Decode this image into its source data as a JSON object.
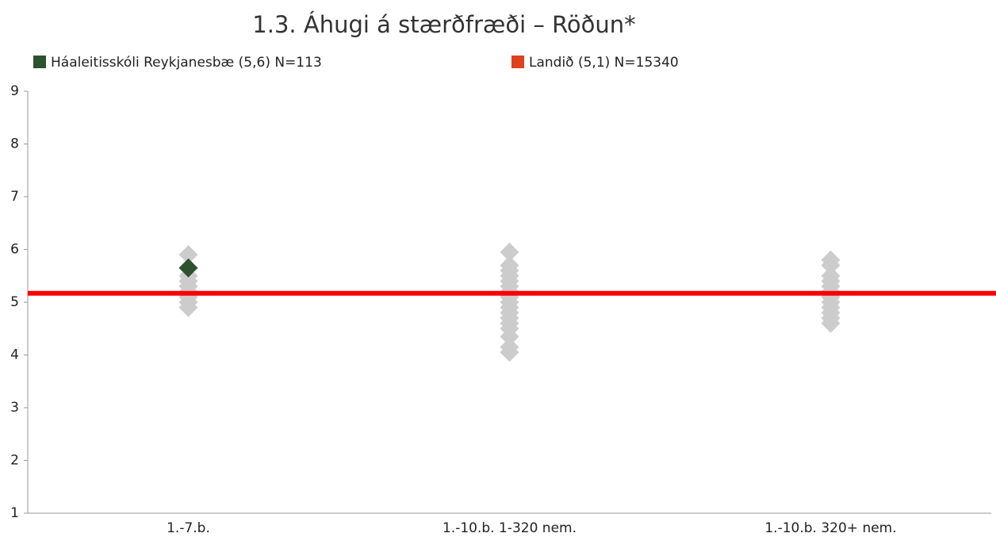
{
  "chart_data": {
    "type": "strip",
    "title": "1.3. Áhugi á stærðfræði – Röðun*",
    "categories": [
      "1.-7.b.",
      "1.-10.b. 1-320 nem.",
      "1.-10.b. 320+ nem."
    ],
    "ylim": [
      1,
      9
    ],
    "yticks": [
      1,
      2,
      3,
      4,
      5,
      6,
      7,
      8,
      9
    ],
    "background": {
      "color": "#cccccc",
      "values": [
        [
          4.9,
          5.0,
          5.1,
          5.2,
          5.3,
          5.4,
          5.5,
          5.9
        ],
        [
          4.05,
          4.15,
          4.35,
          4.5,
          4.6,
          4.7,
          4.8,
          4.9,
          5.0,
          5.1,
          5.2,
          5.3,
          5.4,
          5.5,
          5.6,
          5.7,
          5.95
        ],
        [
          4.6,
          4.7,
          4.8,
          4.9,
          5.0,
          5.1,
          5.2,
          5.3,
          5.4,
          5.5,
          5.7,
          5.8
        ]
      ]
    },
    "series": [
      {
        "name": "Háaleitisskóli Reykjanesbæ (5,6) N=113",
        "color": "#2e5130",
        "values": [
          5.65,
          null,
          null
        ]
      }
    ],
    "reference": {
      "name": "Landið (5,1) N=15340",
      "color": "#e0401c",
      "line_color": "#ff0000",
      "value": 5.17
    }
  }
}
